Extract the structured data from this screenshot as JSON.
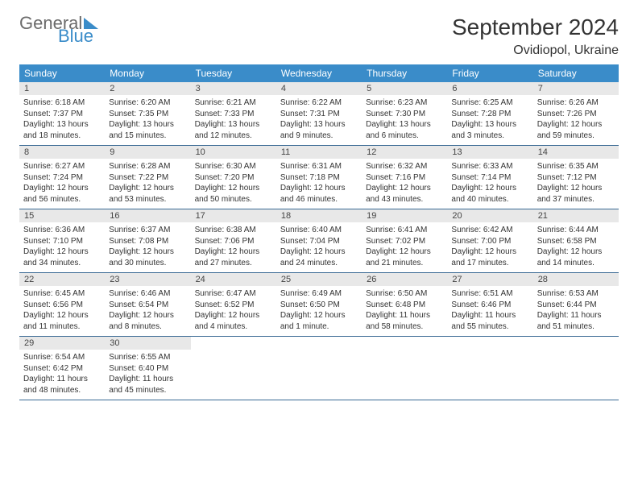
{
  "logo": {
    "text1": "General",
    "text2": "Blue"
  },
  "title": "September 2024",
  "location": "Ovidiopol, Ukraine",
  "colors": {
    "header_bg": "#3a8cc9",
    "header_text": "#ffffff",
    "daynum_bg": "#e8e8e8",
    "row_border": "#3a6a94",
    "body_text": "#333333",
    "logo_gray": "#6b6b6b"
  },
  "fonts": {
    "title_size_pt": 21,
    "location_size_pt": 12,
    "weekday_size_pt": 9,
    "body_size_pt": 7.5
  },
  "weekdays": [
    "Sunday",
    "Monday",
    "Tuesday",
    "Wednesday",
    "Thursday",
    "Friday",
    "Saturday"
  ],
  "weeks": [
    [
      {
        "n": "1",
        "sunrise": "6:18 AM",
        "sunset": "7:37 PM",
        "daylight": "13 hours and 18 minutes."
      },
      {
        "n": "2",
        "sunrise": "6:20 AM",
        "sunset": "7:35 PM",
        "daylight": "13 hours and 15 minutes."
      },
      {
        "n": "3",
        "sunrise": "6:21 AM",
        "sunset": "7:33 PM",
        "daylight": "13 hours and 12 minutes."
      },
      {
        "n": "4",
        "sunrise": "6:22 AM",
        "sunset": "7:31 PM",
        "daylight": "13 hours and 9 minutes."
      },
      {
        "n": "5",
        "sunrise": "6:23 AM",
        "sunset": "7:30 PM",
        "daylight": "13 hours and 6 minutes."
      },
      {
        "n": "6",
        "sunrise": "6:25 AM",
        "sunset": "7:28 PM",
        "daylight": "13 hours and 3 minutes."
      },
      {
        "n": "7",
        "sunrise": "6:26 AM",
        "sunset": "7:26 PM",
        "daylight": "12 hours and 59 minutes."
      }
    ],
    [
      {
        "n": "8",
        "sunrise": "6:27 AM",
        "sunset": "7:24 PM",
        "daylight": "12 hours and 56 minutes."
      },
      {
        "n": "9",
        "sunrise": "6:28 AM",
        "sunset": "7:22 PM",
        "daylight": "12 hours and 53 minutes."
      },
      {
        "n": "10",
        "sunrise": "6:30 AM",
        "sunset": "7:20 PM",
        "daylight": "12 hours and 50 minutes."
      },
      {
        "n": "11",
        "sunrise": "6:31 AM",
        "sunset": "7:18 PM",
        "daylight": "12 hours and 46 minutes."
      },
      {
        "n": "12",
        "sunrise": "6:32 AM",
        "sunset": "7:16 PM",
        "daylight": "12 hours and 43 minutes."
      },
      {
        "n": "13",
        "sunrise": "6:33 AM",
        "sunset": "7:14 PM",
        "daylight": "12 hours and 40 minutes."
      },
      {
        "n": "14",
        "sunrise": "6:35 AM",
        "sunset": "7:12 PM",
        "daylight": "12 hours and 37 minutes."
      }
    ],
    [
      {
        "n": "15",
        "sunrise": "6:36 AM",
        "sunset": "7:10 PM",
        "daylight": "12 hours and 34 minutes."
      },
      {
        "n": "16",
        "sunrise": "6:37 AM",
        "sunset": "7:08 PM",
        "daylight": "12 hours and 30 minutes."
      },
      {
        "n": "17",
        "sunrise": "6:38 AM",
        "sunset": "7:06 PM",
        "daylight": "12 hours and 27 minutes."
      },
      {
        "n": "18",
        "sunrise": "6:40 AM",
        "sunset": "7:04 PM",
        "daylight": "12 hours and 24 minutes."
      },
      {
        "n": "19",
        "sunrise": "6:41 AM",
        "sunset": "7:02 PM",
        "daylight": "12 hours and 21 minutes."
      },
      {
        "n": "20",
        "sunrise": "6:42 AM",
        "sunset": "7:00 PM",
        "daylight": "12 hours and 17 minutes."
      },
      {
        "n": "21",
        "sunrise": "6:44 AM",
        "sunset": "6:58 PM",
        "daylight": "12 hours and 14 minutes."
      }
    ],
    [
      {
        "n": "22",
        "sunrise": "6:45 AM",
        "sunset": "6:56 PM",
        "daylight": "12 hours and 11 minutes."
      },
      {
        "n": "23",
        "sunrise": "6:46 AM",
        "sunset": "6:54 PM",
        "daylight": "12 hours and 8 minutes."
      },
      {
        "n": "24",
        "sunrise": "6:47 AM",
        "sunset": "6:52 PM",
        "daylight": "12 hours and 4 minutes."
      },
      {
        "n": "25",
        "sunrise": "6:49 AM",
        "sunset": "6:50 PM",
        "daylight": "12 hours and 1 minute."
      },
      {
        "n": "26",
        "sunrise": "6:50 AM",
        "sunset": "6:48 PM",
        "daylight": "11 hours and 58 minutes."
      },
      {
        "n": "27",
        "sunrise": "6:51 AM",
        "sunset": "6:46 PM",
        "daylight": "11 hours and 55 minutes."
      },
      {
        "n": "28",
        "sunrise": "6:53 AM",
        "sunset": "6:44 PM",
        "daylight": "11 hours and 51 minutes."
      }
    ],
    [
      {
        "n": "29",
        "sunrise": "6:54 AM",
        "sunset": "6:42 PM",
        "daylight": "11 hours and 48 minutes."
      },
      {
        "n": "30",
        "sunrise": "6:55 AM",
        "sunset": "6:40 PM",
        "daylight": "11 hours and 45 minutes."
      },
      null,
      null,
      null,
      null,
      null
    ]
  ],
  "labels": {
    "sunrise_prefix": "Sunrise: ",
    "sunset_prefix": "Sunset: ",
    "daylight_prefix": "Daylight: "
  }
}
